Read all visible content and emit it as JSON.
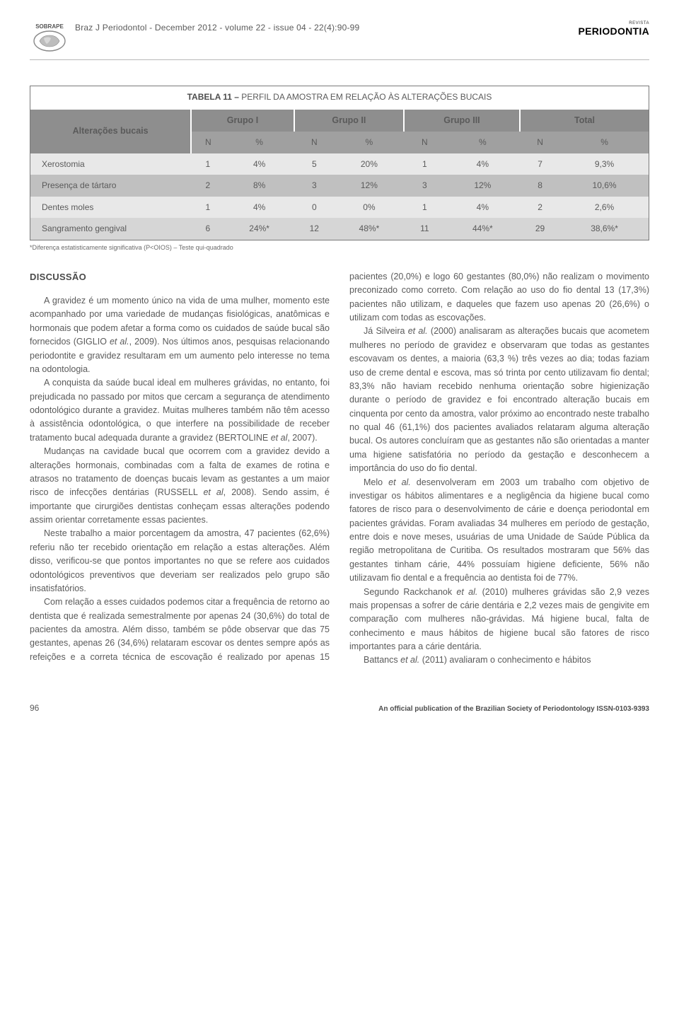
{
  "header": {
    "running_head": "Braz J Periodontol - December 2012 - volume 22 - issue 04 - 22(4):90-99",
    "logo_top": "SOBRAPE",
    "brand_small": "REVISTA",
    "brand_big": "PERIODONTIA"
  },
  "table": {
    "title_bold": "TABELA 11 – ",
    "title_rest": "PERFIL DA AMOSTRA EM RELAÇÃO ÀS ALTERAÇÕES BUCAIS",
    "row_header_label": "Alterações bucais",
    "col_groups": [
      "Grupo I",
      "Grupo II",
      "Grupo III",
      "Total"
    ],
    "sub_cols": [
      "N",
      "%",
      "N",
      "%",
      "N",
      "%",
      "N",
      "%"
    ],
    "rows": [
      {
        "label": "Xerostomia",
        "cells": [
          "1",
          "4%",
          "5",
          "20%",
          "1",
          "4%",
          "7",
          "9,3%"
        ],
        "band": "band-light"
      },
      {
        "label": "Presença de tártaro",
        "cells": [
          "2",
          "8%",
          "3",
          "12%",
          "3",
          "12%",
          "8",
          "10,6%"
        ],
        "band": "band-dark"
      },
      {
        "label": "Dentes moles",
        "cells": [
          "1",
          "4%",
          "0",
          "0%",
          "1",
          "4%",
          "2",
          "2,6%"
        ],
        "band": "band-light"
      },
      {
        "label": "Sangramento gengival",
        "cells": [
          "6",
          "24%*",
          "12",
          "48%*",
          "11",
          "44%*",
          "29",
          "38,6%*"
        ],
        "band": "band-mid"
      }
    ],
    "footnote": "*Diferença estatisticamente significativa (P<OIOS) – Teste qui-quadrado",
    "colors": {
      "hdr1_bg": "#8e8e8e",
      "hdr2_bg": "#a0a0a0",
      "band_light": "#e8e8e8",
      "band_dark": "#c0c0c0",
      "band_mid": "#d6d6d6",
      "border": "#7a7a7a",
      "hdr_text": "#ffffff"
    }
  },
  "body": {
    "section_head": "DISCUSSÃO",
    "p1": "A gravidez é um momento único na vida de uma mulher, momento este acompanhado por uma variedade de mudanças fisiológicas, anatômicas e hormonais que podem afetar a forma como os cuidados de saúde bucal são fornecidos (GIGLIO et al., 2009). Nos últimos anos, pesquisas relacionando periodontite e gravidez resultaram em um aumento pelo interesse no tema na odontologia.",
    "p2": "A conquista da saúde bucal ideal em mulheres grávidas, no entanto, foi prejudicada no passado por mitos que cercam a segurança de atendimento odontológico durante a gravidez. Muitas mulheres também não têm acesso à assistência odontológica, o que interfere na possibilidade de receber tratamento bucal adequada durante a gravidez (BERTOLINE et al, 2007).",
    "p3": "Mudanças na cavidade bucal que ocorrem com a gravidez devido a alterações hormonais, combinadas com a falta de exames de rotina e atrasos no tratamento de doenças bucais levam as gestantes a um maior risco de infecções dentárias (RUSSELL et al, 2008). Sendo assim, é importante que cirurgiões dentistas conheçam essas alterações podendo assim orientar corretamente essas pacientes.",
    "p4": "Neste trabalho a maior porcentagem da amostra, 47 pacientes (62,6%) referiu não ter recebido orientação em relação a estas alterações. Além disso, verificou-se que pontos importantes no que se refere aos cuidados odontológicos preventivos que deveriam ser realizados pelo grupo são insatisfatórios.",
    "p5": "Com relação a esses cuidados podemos citar a frequência de retorno ao dentista que é realizada semestralmente por apenas 24 (30,6%) do total de pacientes da amostra. Além disso, também se pôde observar que das 75 gestantes, apenas 26 (34,6%) relataram escovar os dentes sempre após as refeições e a correta técnica de escovação é realizado por",
    "p6": "apenas 15 pacientes (20,0%) e logo 60 gestantes (80,0%) não realizam o movimento preconizado como correto. Com relação ao uso do fio dental 13 (17,3%) pacientes não utilizam, e daqueles que fazem uso apenas 20 (26,6%) o utilizam com todas as escovações.",
    "p7": "Já Silveira et al. (2000) analisaram as alterações bucais que acometem mulheres no período de gravidez e observaram que todas as gestantes escovavam os dentes, a maioria (63,3 %) três vezes ao dia; todas faziam uso de creme dental e escova, mas só trinta por cento utilizavam fio dental; 83,3% não haviam recebido nenhuma orientação sobre higienização durante o período de gravidez e foi encontrado alteração bucais em cinquenta por cento da amostra, valor próximo ao encontrado neste trabalho no qual 46 (61,1%) dos pacientes avaliados relataram alguma alteração bucal. Os autores concluíram que as gestantes não são orientadas a manter uma higiene satisfatória no período da gestação e desconhecem a importância do uso do fio dental.",
    "p8": "Melo et al. desenvolveram em 2003 um trabalho com objetivo de investigar os hábitos alimentares e a negligência da higiene bucal como fatores de risco para o desenvolvimento de cárie e doença periodontal em pacientes grávidas. Foram avaliadas 34 mulheres em período de gestação, entre dois e nove meses, usuárias de uma Unidade de Saúde Pública da região metropolitana de Curitiba. Os resultados mostraram que 56% das gestantes tinham cárie, 44% possuíam higiene deficiente, 56% não utilizavam fio dental e a frequência ao dentista foi de 77%.",
    "p9": "Segundo Rackchanok et al. (2010) mulheres grávidas são 2,9 vezes mais propensas a sofrer de cárie dentária  e 2,2 vezes mais  de gengivite em comparação com mulheres não-grávidas. Má higiene bucal, falta de conhecimento e maus hábitos de higiene bucal  são fatores de risco importantes para a cárie dentária.",
    "p10": "Battancs et al. (2011) avaliaram o conhecimento e hábitos"
  },
  "footer": {
    "page_no": "96",
    "pub": "An official publication of the Brazilian Society of Periodontology ISSN-0103-9393"
  }
}
